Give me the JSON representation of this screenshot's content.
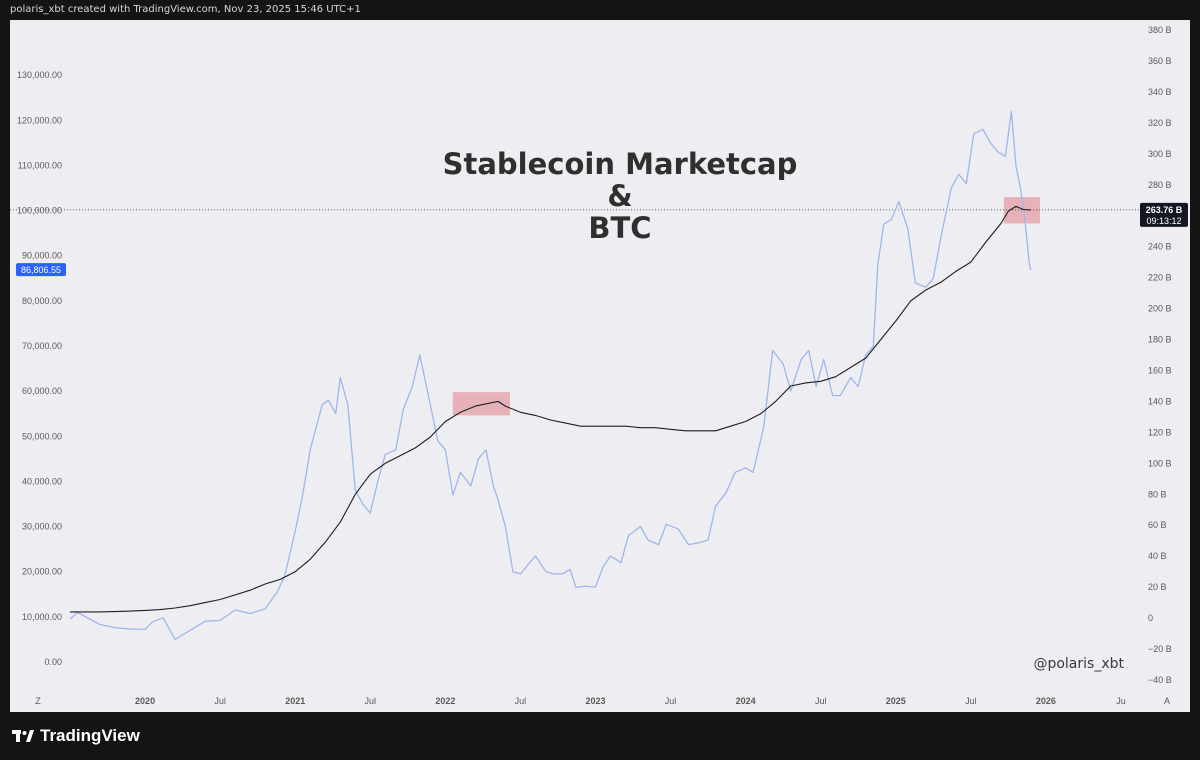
{
  "header": {
    "caption": "polaris_xbt created with TradingView.com, Nov 23, 2025 15:46 UTC+1"
  },
  "footer": {
    "brand": "TradingView"
  },
  "watermark": "@polaris_xbt",
  "corner_labels": {
    "left": "Z",
    "right": "A"
  },
  "chart_data": {
    "type": "line",
    "title": [
      "Stablecoin Marketcap",
      "&",
      "BTC"
    ],
    "x_ticks": [
      {
        "label": "2020",
        "date": 2020.0
      },
      {
        "label": "Jul",
        "date": 2020.5
      },
      {
        "label": "2021",
        "date": 2021.0
      },
      {
        "label": "Jul",
        "date": 2021.5
      },
      {
        "label": "2022",
        "date": 2022.0
      },
      {
        "label": "Jul",
        "date": 2022.5
      },
      {
        "label": "2023",
        "date": 2023.0
      },
      {
        "label": "Jul",
        "date": 2023.5
      },
      {
        "label": "2024",
        "date": 2024.0
      },
      {
        "label": "Jul",
        "date": 2024.5
      },
      {
        "label": "2025",
        "date": 2025.0
      },
      {
        "label": "Jul",
        "date": 2025.5
      },
      {
        "label": "2026",
        "date": 2026.0
      },
      {
        "label": "Ju",
        "date": 2026.5
      }
    ],
    "x_range": [
      2019.5,
      2026.6
    ],
    "left_axis": {
      "range": [
        -4000,
        140000
      ],
      "ticks": [
        {
          "label": "0.00",
          "value": 0
        },
        {
          "label": "10,000.00",
          "value": 10000
        },
        {
          "label": "20,000.00",
          "value": 20000
        },
        {
          "label": "30,000.00",
          "value": 30000
        },
        {
          "label": "40,000.00",
          "value": 40000
        },
        {
          "label": "50,000.00",
          "value": 50000
        },
        {
          "label": "60,000.00",
          "value": 60000
        },
        {
          "label": "70,000.00",
          "value": 70000
        },
        {
          "label": "80,000.00",
          "value": 80000
        },
        {
          "label": "90,000.00",
          "value": 90000
        },
        {
          "label": "100,000.00",
          "value": 100000
        },
        {
          "label": "110,000.00",
          "value": 110000
        },
        {
          "label": "120,000.00",
          "value": 120000
        },
        {
          "label": "130,000.00",
          "value": 130000
        }
      ],
      "current_value_label": "86,806.55",
      "current_value": 86806.55,
      "current_color": "#2962ff"
    },
    "right_axis": {
      "range": [
        -40,
        380
      ],
      "ticks": [
        {
          "label": "−40 B",
          "value": -40
        },
        {
          "label": "−20 B",
          "value": -20
        },
        {
          "label": "0",
          "value": 0
        },
        {
          "label": "20 B",
          "value": 20
        },
        {
          "label": "40 B",
          "value": 40
        },
        {
          "label": "60 B",
          "value": 60
        },
        {
          "label": "80 B",
          "value": 80
        },
        {
          "label": "100 B",
          "value": 100
        },
        {
          "label": "120 B",
          "value": 120
        },
        {
          "label": "140 B",
          "value": 140
        },
        {
          "label": "160 B",
          "value": 160
        },
        {
          "label": "180 B",
          "value": 180
        },
        {
          "label": "200 B",
          "value": 200
        },
        {
          "label": "220 B",
          "value": 220
        },
        {
          "label": "240 B",
          "value": 240
        },
        {
          "label": "260 B",
          "value": 260
        },
        {
          "label": "280 B",
          "value": 280
        },
        {
          "label": "300 B",
          "value": 300
        },
        {
          "label": "320 B",
          "value": 320
        },
        {
          "label": "340 B",
          "value": 340
        },
        {
          "label": "360 B",
          "value": 360
        },
        {
          "label": "380 B",
          "value": 380
        }
      ],
      "current_value_label": "263.76 B",
      "current_time_label": "09:13:12",
      "current_value": 263.76,
      "current_color": "#131722"
    },
    "series": [
      {
        "axis": "left",
        "color": "#9db7ec",
        "points": [
          [
            2019.5,
            9500
          ],
          [
            2019.55,
            11000
          ],
          [
            2019.6,
            10100
          ],
          [
            2019.7,
            8300
          ],
          [
            2019.8,
            7600
          ],
          [
            2019.9,
            7300
          ],
          [
            2020.0,
            7200
          ],
          [
            2020.05,
            8900
          ],
          [
            2020.12,
            9800
          ],
          [
            2020.2,
            5000
          ],
          [
            2020.3,
            7000
          ],
          [
            2020.4,
            9000
          ],
          [
            2020.5,
            9200
          ],
          [
            2020.6,
            11500
          ],
          [
            2020.7,
            10700
          ],
          [
            2020.8,
            11800
          ],
          [
            2020.88,
            15500
          ],
          [
            2020.93,
            19000
          ],
          [
            2021.0,
            29000
          ],
          [
            2021.05,
            37000
          ],
          [
            2021.1,
            47000
          ],
          [
            2021.18,
            57000
          ],
          [
            2021.22,
            58000
          ],
          [
            2021.27,
            55000
          ],
          [
            2021.3,
            63000
          ],
          [
            2021.35,
            57000
          ],
          [
            2021.4,
            38000
          ],
          [
            2021.45,
            35000
          ],
          [
            2021.5,
            33000
          ],
          [
            2021.55,
            40000
          ],
          [
            2021.6,
            46000
          ],
          [
            2021.67,
            47000
          ],
          [
            2021.72,
            56000
          ],
          [
            2021.78,
            61000
          ],
          [
            2021.83,
            68000
          ],
          [
            2021.9,
            57000
          ],
          [
            2021.95,
            49000
          ],
          [
            2022.0,
            47000
          ],
          [
            2022.05,
            37000
          ],
          [
            2022.1,
            42000
          ],
          [
            2022.17,
            39000
          ],
          [
            2022.22,
            45000
          ],
          [
            2022.27,
            47000
          ],
          [
            2022.32,
            39000
          ],
          [
            2022.35,
            36000
          ],
          [
            2022.4,
            30000
          ],
          [
            2022.45,
            20000
          ],
          [
            2022.5,
            19500
          ],
          [
            2022.55,
            21500
          ],
          [
            2022.6,
            23500
          ],
          [
            2022.67,
            20000
          ],
          [
            2022.72,
            19500
          ],
          [
            2022.78,
            19500
          ],
          [
            2022.83,
            20500
          ],
          [
            2022.87,
            16500
          ],
          [
            2022.93,
            16800
          ],
          [
            2023.0,
            16600
          ],
          [
            2023.05,
            21000
          ],
          [
            2023.1,
            23500
          ],
          [
            2023.17,
            22000
          ],
          [
            2023.22,
            28000
          ],
          [
            2023.3,
            30000
          ],
          [
            2023.35,
            27000
          ],
          [
            2023.42,
            26000
          ],
          [
            2023.47,
            30500
          ],
          [
            2023.55,
            29500
          ],
          [
            2023.62,
            26000
          ],
          [
            2023.7,
            26500
          ],
          [
            2023.75,
            27000
          ],
          [
            2023.8,
            34500
          ],
          [
            2023.87,
            37500
          ],
          [
            2023.93,
            42000
          ],
          [
            2024.0,
            43000
          ],
          [
            2024.05,
            42000
          ],
          [
            2024.12,
            52000
          ],
          [
            2024.18,
            69000
          ],
          [
            2024.25,
            66000
          ],
          [
            2024.3,
            60000
          ],
          [
            2024.37,
            67000
          ],
          [
            2024.42,
            69000
          ],
          [
            2024.47,
            61000
          ],
          [
            2024.52,
            67000
          ],
          [
            2024.58,
            59000
          ],
          [
            2024.63,
            59000
          ],
          [
            2024.7,
            63000
          ],
          [
            2024.75,
            61000
          ],
          [
            2024.8,
            68000
          ],
          [
            2024.85,
            70000
          ],
          [
            2024.88,
            88000
          ],
          [
            2024.92,
            97000
          ],
          [
            2024.97,
            98000
          ],
          [
            2025.02,
            102000
          ],
          [
            2025.08,
            96000
          ],
          [
            2025.13,
            84000
          ],
          [
            2025.2,
            83000
          ],
          [
            2025.25,
            85000
          ],
          [
            2025.3,
            94000
          ],
          [
            2025.37,
            105000
          ],
          [
            2025.42,
            108000
          ],
          [
            2025.47,
            106000
          ],
          [
            2025.52,
            117000
          ],
          [
            2025.58,
            118000
          ],
          [
            2025.63,
            115000
          ],
          [
            2025.68,
            113000
          ],
          [
            2025.73,
            112000
          ],
          [
            2025.77,
            122000
          ],
          [
            2025.8,
            110000
          ],
          [
            2025.83,
            105000
          ],
          [
            2025.86,
            98000
          ],
          [
            2025.89,
            88000
          ],
          [
            2025.9,
            86800
          ]
        ]
      },
      {
        "axis": "right",
        "color": "#1e1e1e",
        "points": [
          [
            2019.5,
            4
          ],
          [
            2019.7,
            4
          ],
          [
            2019.9,
            4.5
          ],
          [
            2020.0,
            5
          ],
          [
            2020.1,
            5.5
          ],
          [
            2020.2,
            6.5
          ],
          [
            2020.3,
            8
          ],
          [
            2020.4,
            10
          ],
          [
            2020.5,
            12
          ],
          [
            2020.6,
            15
          ],
          [
            2020.7,
            18
          ],
          [
            2020.8,
            22
          ],
          [
            2020.9,
            25
          ],
          [
            2021.0,
            30
          ],
          [
            2021.1,
            38
          ],
          [
            2021.2,
            49
          ],
          [
            2021.3,
            62
          ],
          [
            2021.4,
            80
          ],
          [
            2021.5,
            93
          ],
          [
            2021.6,
            100
          ],
          [
            2021.7,
            105
          ],
          [
            2021.8,
            110
          ],
          [
            2021.9,
            117
          ],
          [
            2022.0,
            127
          ],
          [
            2022.1,
            133
          ],
          [
            2022.2,
            137
          ],
          [
            2022.3,
            139
          ],
          [
            2022.35,
            140
          ],
          [
            2022.4,
            137
          ],
          [
            2022.5,
            133
          ],
          [
            2022.6,
            131
          ],
          [
            2022.7,
            128
          ],
          [
            2022.8,
            126
          ],
          [
            2022.9,
            124
          ],
          [
            2023.0,
            124
          ],
          [
            2023.1,
            124
          ],
          [
            2023.2,
            124
          ],
          [
            2023.3,
            123
          ],
          [
            2023.4,
            123
          ],
          [
            2023.5,
            122
          ],
          [
            2023.6,
            121
          ],
          [
            2023.7,
            121
          ],
          [
            2023.8,
            121
          ],
          [
            2023.9,
            124
          ],
          [
            2024.0,
            127
          ],
          [
            2024.1,
            132
          ],
          [
            2024.2,
            140
          ],
          [
            2024.3,
            150
          ],
          [
            2024.4,
            152
          ],
          [
            2024.5,
            153
          ],
          [
            2024.6,
            156
          ],
          [
            2024.7,
            162
          ],
          [
            2024.8,
            168
          ],
          [
            2024.9,
            180
          ],
          [
            2025.0,
            192
          ],
          [
            2025.1,
            205
          ],
          [
            2025.2,
            212
          ],
          [
            2025.3,
            217
          ],
          [
            2025.4,
            224
          ],
          [
            2025.5,
            230
          ],
          [
            2025.6,
            243
          ],
          [
            2025.7,
            255
          ],
          [
            2025.75,
            263
          ],
          [
            2025.8,
            266
          ],
          [
            2025.85,
            264
          ],
          [
            2025.9,
            263.76
          ]
        ]
      }
    ],
    "annotations": [
      {
        "type": "highlight",
        "date_range": [
          2022.05,
          2022.43
        ],
        "right_value_range": [
          131,
          146
        ],
        "color": "#e07f88"
      },
      {
        "type": "highlight",
        "date_range": [
          2025.72,
          2025.96
        ],
        "right_value_range": [
          255,
          272
        ],
        "color": "#e07f88"
      }
    ],
    "reference_line": {
      "right_value": 263.76
    },
    "grid": false
  }
}
